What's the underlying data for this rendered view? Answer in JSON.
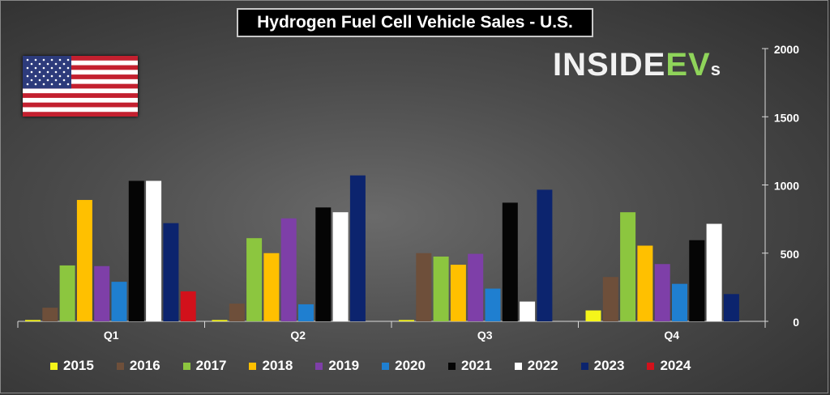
{
  "title": "Hydrogen Fuel Cell Vehicle Sales - U.S.",
  "logo": {
    "main": "INSIDE",
    "ev": "EV",
    "s": "s"
  },
  "flag": {
    "icon": "us-flag-icon"
  },
  "chart_data": {
    "type": "bar",
    "title": "Hydrogen Fuel Cell Vehicle Sales - U.S.",
    "xlabel": "",
    "ylabel": "",
    "ylim": [
      0,
      2000
    ],
    "yticks": [
      0,
      500,
      1000,
      1500,
      2000
    ],
    "y_axis_position": "right",
    "grid": false,
    "legend_position": "bottom",
    "categories": [
      "Q1",
      "Q2",
      "Q3",
      "Q4"
    ],
    "series": [
      {
        "name": "2015",
        "color": "#f5f51a",
        "values": [
          10,
          10,
          10,
          80
        ]
      },
      {
        "name": "2016",
        "color": "#6e4f3a",
        "values": [
          100,
          130,
          500,
          325
        ]
      },
      {
        "name": "2017",
        "color": "#8cc63f",
        "values": [
          410,
          610,
          475,
          800
        ]
      },
      {
        "name": "2018",
        "color": "#ffc000",
        "values": [
          890,
          500,
          415,
          555
        ]
      },
      {
        "name": "2019",
        "color": "#7e3fa8",
        "values": [
          405,
          755,
          495,
          420
        ]
      },
      {
        "name": "2020",
        "color": "#1f7fd0",
        "values": [
          290,
          125,
          240,
          275
        ]
      },
      {
        "name": "2021",
        "color": "#050505",
        "values": [
          1030,
          835,
          870,
          595
        ]
      },
      {
        "name": "2022",
        "color": "#ffffff",
        "values": [
          1030,
          800,
          145,
          715
        ]
      },
      {
        "name": "2023",
        "color": "#0c246e",
        "values": [
          720,
          1070,
          965,
          200
        ]
      },
      {
        "name": "2024",
        "color": "#d2111b",
        "values": [
          220,
          0,
          0,
          0
        ]
      }
    ]
  }
}
